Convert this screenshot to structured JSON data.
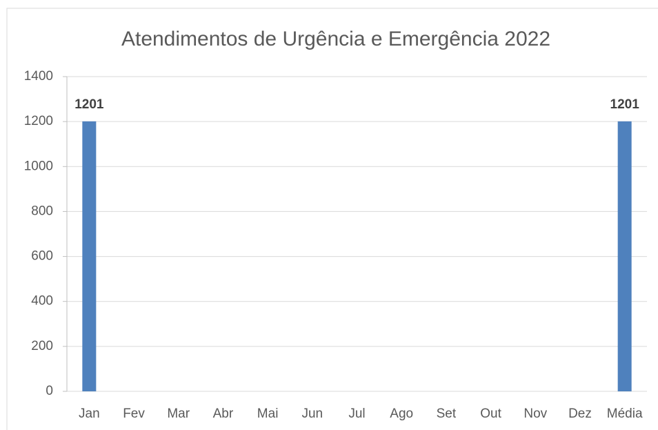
{
  "chart_data": {
    "type": "bar",
    "title": "Atendimentos de Urgência e Emergência 2022",
    "categories": [
      "Jan",
      "Fev",
      "Mar",
      "Abr",
      "Mai",
      "Jun",
      "Jul",
      "Ago",
      "Set",
      "Out",
      "Nov",
      "Dez",
      "Média"
    ],
    "values": [
      1201,
      null,
      null,
      null,
      null,
      null,
      null,
      null,
      null,
      null,
      null,
      null,
      1201
    ],
    "color": "#4f81bd",
    "ylim": [
      0,
      1400
    ],
    "yticks": [
      0,
      200,
      400,
      600,
      800,
      1000,
      1200,
      1400
    ],
    "grid": true
  }
}
